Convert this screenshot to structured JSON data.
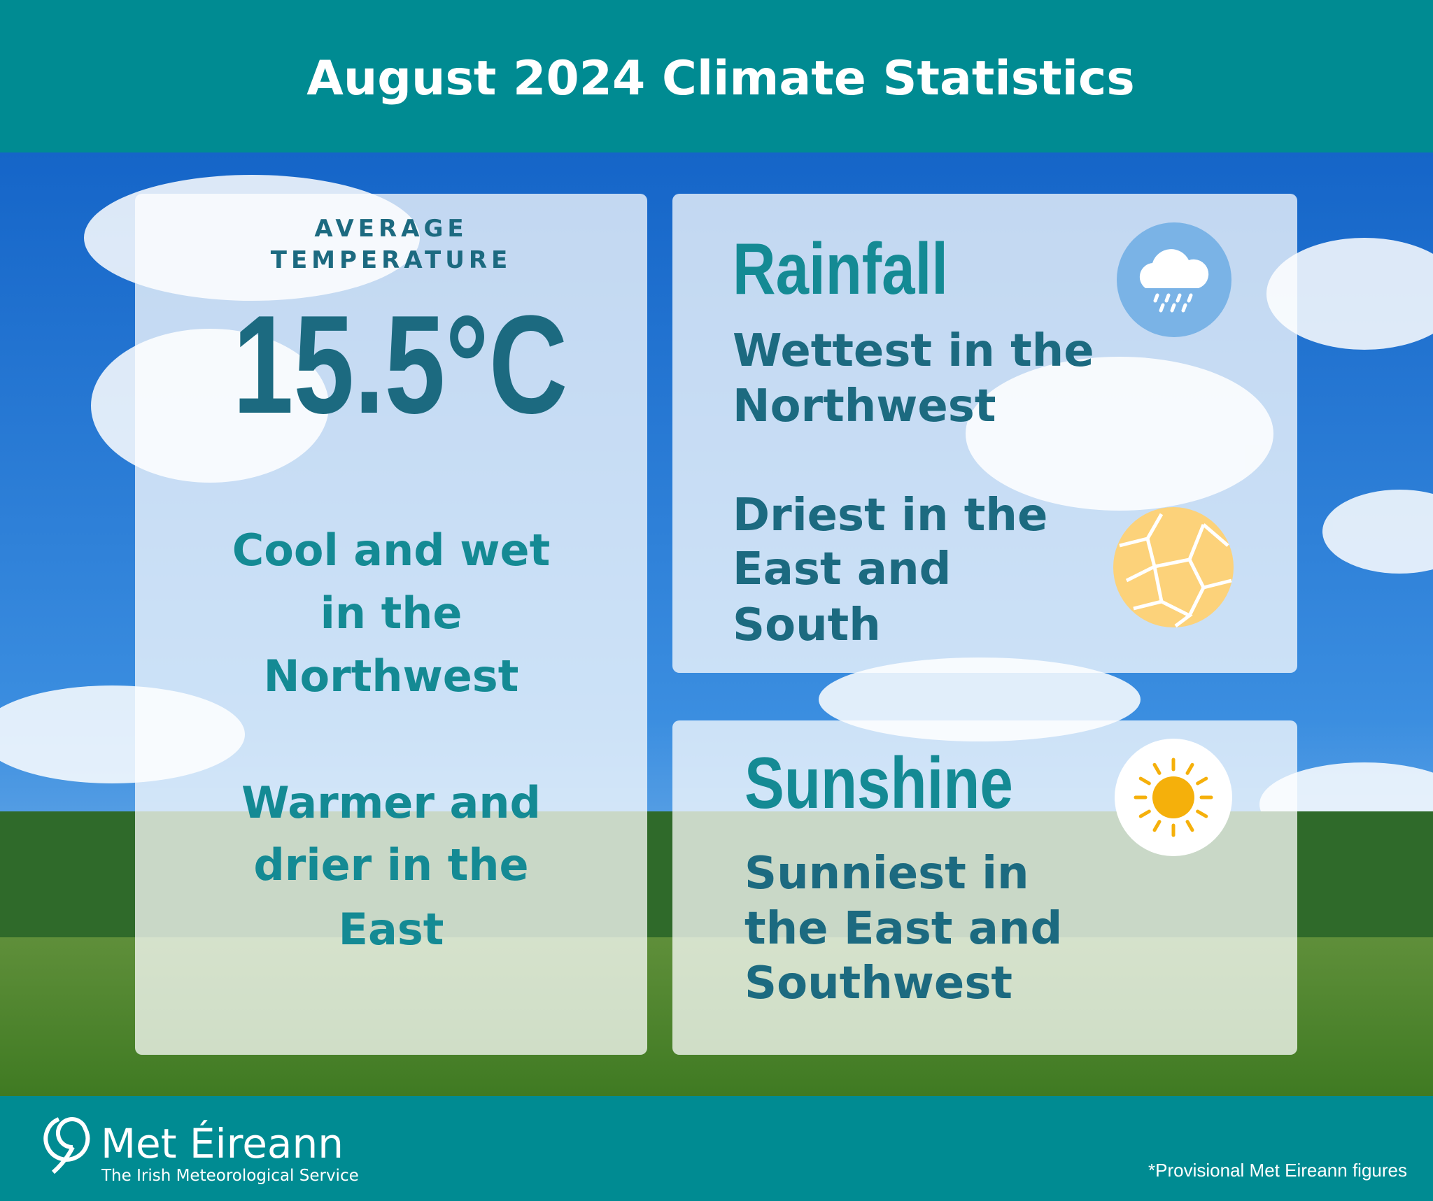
{
  "header": {
    "title": "August 2024 Climate Statistics"
  },
  "temperature_card": {
    "label": [
      "AVERAGE",
      "TEMPERATURE"
    ],
    "value": "15.5°C",
    "notes": [
      [
        "Cool and wet",
        "in the",
        "Northwest"
      ],
      [
        "Warmer and",
        "drier in the",
        "East"
      ]
    ]
  },
  "rainfall_card": {
    "title": "Rainfall",
    "wettest": [
      "Wettest in the",
      "Northwest"
    ],
    "driest": [
      "Driest in the",
      "East and",
      "South"
    ]
  },
  "sunshine_card": {
    "title": "Sunshine",
    "sunniest": [
      "Sunniest in",
      "the East and",
      "Southwest"
    ]
  },
  "footer": {
    "logo": "Met Éireann",
    "tagline": "The Irish Meteorological Service",
    "note": "*Provisional Met Eireann figures"
  }
}
